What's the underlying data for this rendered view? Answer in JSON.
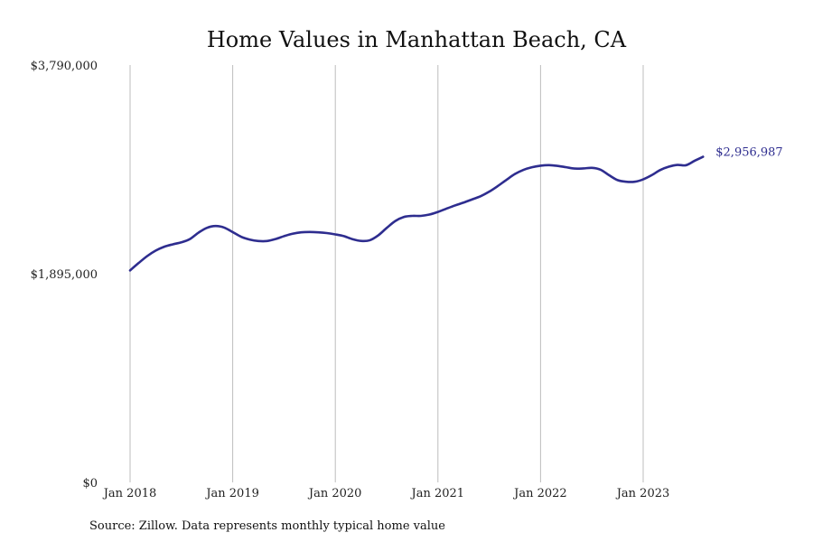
{
  "chart_data": {
    "type": "line",
    "title": "Home Values in Manhattan Beach, CA",
    "xlabel": "",
    "ylabel": "",
    "ylim": [
      0,
      3790000
    ],
    "y_ticks": [
      {
        "value": 0,
        "label": "$0"
      },
      {
        "value": 1895000,
        "label": "$1,895,000"
      },
      {
        "value": 3790000,
        "label": "$3,790,000"
      }
    ],
    "x_ticks": [
      {
        "value": 0,
        "label": "Jan 2018"
      },
      {
        "value": 12,
        "label": "Jan 2019"
      },
      {
        "value": 24,
        "label": "Jan 2020"
      },
      {
        "value": 36,
        "label": "Jan 2021"
      },
      {
        "value": 48,
        "label": "Jan 2022"
      },
      {
        "value": 60,
        "label": "Jan 2023"
      }
    ],
    "grid": "vertical",
    "x": [
      "2018-01",
      "2018-02",
      "2018-03",
      "2018-04",
      "2018-05",
      "2018-06",
      "2018-07",
      "2018-08",
      "2018-09",
      "2018-10",
      "2018-11",
      "2018-12",
      "2019-01",
      "2019-02",
      "2019-03",
      "2019-04",
      "2019-05",
      "2019-06",
      "2019-07",
      "2019-08",
      "2019-09",
      "2019-10",
      "2019-11",
      "2019-12",
      "2020-01",
      "2020-02",
      "2020-03",
      "2020-04",
      "2020-05",
      "2020-06",
      "2020-07",
      "2020-08",
      "2020-09",
      "2020-10",
      "2020-11",
      "2020-12",
      "2021-01",
      "2021-02",
      "2021-03",
      "2021-04",
      "2021-05",
      "2021-06",
      "2021-07",
      "2021-08",
      "2021-09",
      "2021-10",
      "2021-11",
      "2021-12",
      "2022-01",
      "2022-02",
      "2022-03",
      "2022-04",
      "2022-05",
      "2022-06",
      "2022-07",
      "2022-08",
      "2022-09",
      "2022-10",
      "2022-11",
      "2022-12",
      "2023-01",
      "2023-02",
      "2023-03",
      "2023-04",
      "2023-05",
      "2023-06",
      "2023-07",
      "2023-08"
    ],
    "series": [
      {
        "name": "",
        "color": "#2e2d8f",
        "values": [
          1925000,
          1992000,
          2055000,
          2105000,
          2140000,
          2162000,
          2180000,
          2210000,
          2268000,
          2312000,
          2328000,
          2314000,
          2273000,
          2230000,
          2205000,
          2192000,
          2192000,
          2210000,
          2236000,
          2258000,
          2271000,
          2274000,
          2271000,
          2264000,
          2252000,
          2236000,
          2209000,
          2193000,
          2198000,
          2242000,
          2310000,
          2373000,
          2410000,
          2420000,
          2420000,
          2432000,
          2456000,
          2486000,
          2515000,
          2541000,
          2570000,
          2599000,
          2640000,
          2691000,
          2747000,
          2800000,
          2838000,
          2862000,
          2876000,
          2881000,
          2874000,
          2862000,
          2850000,
          2851000,
          2856000,
          2840000,
          2790000,
          2745000,
          2730000,
          2730000,
          2752000,
          2790000,
          2837000,
          2867000,
          2883000,
          2880000,
          2920000,
          2956987
        ],
        "end_label": "$2,956,987"
      }
    ]
  },
  "source": "Source: Zillow. Data represents monthly typical home value"
}
